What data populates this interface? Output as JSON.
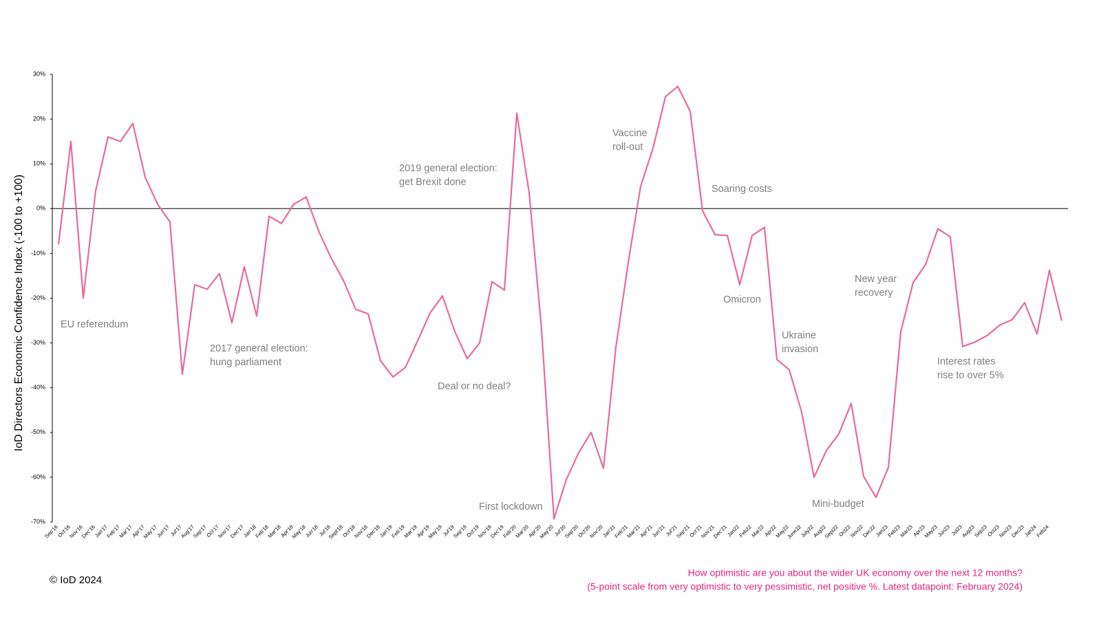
{
  "chart_data": {
    "type": "line",
    "y_label": "IoD Directors Economic Confidence Index (-100 to +100)",
    "categories": [
      "Sep'16",
      "Oct'16",
      "Nov'16",
      "Dec'16",
      "Jan'17",
      "Feb'17",
      "Mar'17",
      "Apr'17",
      "May'17",
      "Jun'17",
      "Jul'17",
      "Aug'17",
      "Sep'17",
      "Oct'17",
      "Nov'17",
      "Dec'17",
      "Jan'18",
      "Feb'18",
      "Mar'18",
      "Apr'18",
      "May'18",
      "Jun'18",
      "Jul'18",
      "Sept'18",
      "Oct'18",
      "Nov'18",
      "Dec'18",
      "Jan'19",
      "Feb'19",
      "Mar'19",
      "Apr'19",
      "May'19",
      "Jul'19",
      "Sep'19",
      "Oct'19",
      "Nov'19",
      "Dec'19",
      "Feb'20",
      "Mar'20",
      "Apr'20",
      "May'20",
      "Jul'20",
      "Sep'20",
      "Oct'20",
      "Nov'20",
      "Jan'21",
      "Feb'21",
      "Mar'21",
      "Apr'21",
      "Jun'21",
      "Jul'21",
      "Sep'21",
      "Oct'21",
      "Nov'21",
      "Dec'21",
      "Jan22",
      "Feb22",
      "Mar22",
      "Apr22",
      "May22",
      "June22",
      "July22",
      "Aug22",
      "Sept22",
      "Oct22",
      "Nov22",
      "Dec22",
      "Jan23",
      "Feb23",
      "Mar23",
      "Apr23",
      "May23",
      "Jun23",
      "Jul23",
      "Aug23",
      "Sep23",
      "Oct23",
      "Nov23",
      "Dec23",
      "Jan24",
      "Feb24",
      null
    ],
    "series": [
      {
        "name": "IoD Directors Economic Confidence Index",
        "color": "#e8699f",
        "values": [
          -8,
          15,
          -20,
          4,
          16,
          15,
          19,
          7,
          1,
          -3,
          -37,
          -17,
          -18,
          -14.5,
          -25.5,
          -13,
          -24,
          -1.7,
          -3.3,
          1,
          2.6,
          -5,
          -11,
          -16,
          -22.5,
          -23.5,
          -34,
          -37.6,
          -35.5,
          -29.5,
          -23.3,
          -19.5,
          -27.5,
          -33.5,
          -30,
          -16.3,
          -18.2,
          21.3,
          3.5,
          -27,
          -69.3,
          -60.5,
          -54.5,
          -50,
          -58,
          -31,
          -12,
          5,
          13.5,
          25,
          27.3,
          21.7,
          -0.5,
          -5.8,
          -6,
          -17,
          -6,
          -4.2,
          -33.7,
          -36,
          -45.5,
          -60,
          -54,
          -50.3,
          -43.5,
          -59.8,
          -64.5,
          -57.8,
          -27.5,
          -16.5,
          -12.5,
          -4.5,
          -6.3,
          -30.8,
          -29.8,
          -28.3,
          -26,
          -24.8,
          -21,
          -28,
          -13.8,
          -25
        ]
      }
    ],
    "ylim": [
      -70,
      30
    ],
    "yticks": [
      {
        "value": -70,
        "label": "-70%"
      },
      {
        "value": -60,
        "label": "-60%"
      },
      {
        "value": -50,
        "label": "-50%"
      },
      {
        "value": -40,
        "label": "-40%"
      },
      {
        "value": -30,
        "label": "-30%"
      },
      {
        "value": -20,
        "label": "-20%"
      },
      {
        "value": -10,
        "label": "-10%"
      },
      {
        "value": 0,
        "label": "0%"
      },
      {
        "value": 10,
        "label": "10%"
      },
      {
        "value": 20,
        "label": "20%"
      },
      {
        "value": 30,
        "label": "30%"
      }
    ],
    "grid": false,
    "annotations": [
      {
        "lines": [
          "EU referendum"
        ]
      },
      {
        "lines": [
          "2017 general election:",
          "hung parliament"
        ]
      },
      {
        "lines": [
          "2019 general election:",
          "get Brexit done"
        ]
      },
      {
        "lines": [
          "Deal or no deal?"
        ]
      },
      {
        "lines": [
          "First lockdown"
        ]
      },
      {
        "lines": [
          "Vaccine",
          "roll-out"
        ]
      },
      {
        "lines": [
          "Soaring costs"
        ]
      },
      {
        "lines": [
          "Omicron"
        ]
      },
      {
        "lines": [
          "Ukraine",
          "invasion"
        ]
      },
      {
        "lines": [
          "Mini-budget"
        ]
      },
      {
        "lines": [
          "New year",
          "recovery"
        ]
      },
      {
        "lines": [
          "Interest rates",
          "rise to over 5%"
        ]
      }
    ],
    "copyright": "© IoD 2024",
    "footnote": [
      "How optimistic are you about the wider UK economy over the next 12 months?",
      "(5-point scale from very optimistic to very pessimistic, net positive %. Latest datapoint: February 2024)"
    ]
  }
}
